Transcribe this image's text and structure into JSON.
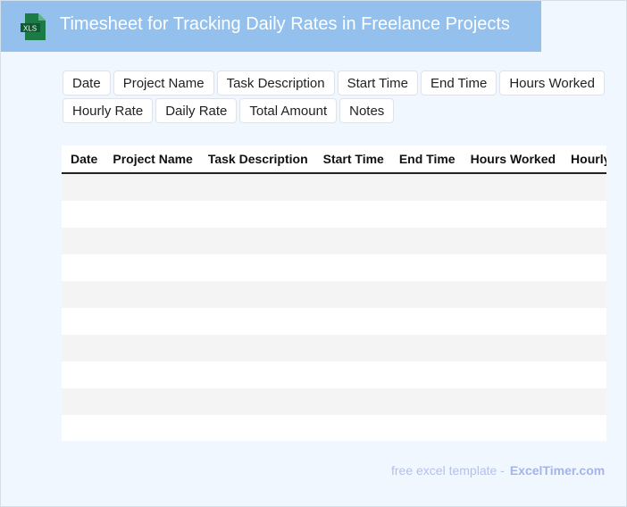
{
  "header": {
    "title": "Timesheet for Tracking Daily Rates in Freelance Projects",
    "icon": "xls-file-icon",
    "icon_label": "XLS",
    "background": "#93c0ec"
  },
  "fields": [
    "Date",
    "Project Name",
    "Task Description",
    "Start Time",
    "End Time",
    "Hours Worked",
    "Hourly Rate",
    "Daily Rate",
    "Total Amount",
    "Notes"
  ],
  "table": {
    "columns": [
      "Date",
      "Project Name",
      "Task Description",
      "Start Time",
      "End Time",
      "Hours Worked",
      "Hourly Rate"
    ],
    "row_count": 10
  },
  "footer": {
    "text": "free excel template -",
    "brand": "ExcelTimer.com"
  }
}
